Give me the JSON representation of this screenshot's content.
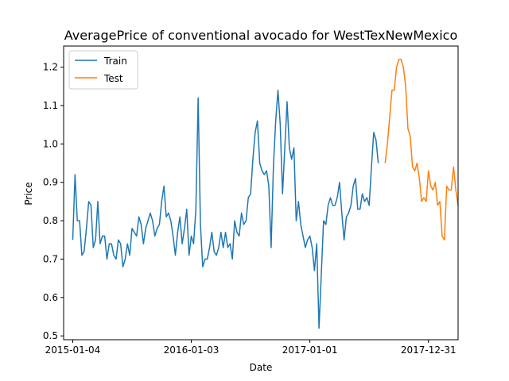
{
  "chart_data": {
    "type": "line",
    "title": "AveragePrice of conventional avocado for WestTexNewMexico",
    "xlabel": "Date",
    "ylabel": "Price",
    "x_range": [
      "2014-12-07",
      "2018-04-01"
    ],
    "ylim": [
      0.49,
      1.255
    ],
    "x_ticks": [
      "2015-01-04",
      "2016-01-03",
      "2017-01-01",
      "2017-12-31"
    ],
    "y_ticks": [
      "0.5",
      "0.6",
      "0.7",
      "0.8",
      "0.9",
      "1.0",
      "1.1",
      "1.2"
    ],
    "grid": false,
    "legend": "upper-left",
    "series": [
      {
        "name": "Train",
        "color": "#1f77b4",
        "start": "2015-01-04",
        "step_days": 7,
        "values": [
          0.75,
          0.92,
          0.8,
          0.8,
          0.71,
          0.72,
          0.78,
          0.85,
          0.84,
          0.73,
          0.75,
          0.85,
          0.74,
          0.76,
          0.76,
          0.7,
          0.74,
          0.74,
          0.71,
          0.7,
          0.75,
          0.74,
          0.68,
          0.7,
          0.74,
          0.71,
          0.78,
          0.77,
          0.76,
          0.81,
          0.79,
          0.74,
          0.78,
          0.8,
          0.82,
          0.8,
          0.76,
          0.78,
          0.79,
          0.85,
          0.89,
          0.81,
          0.82,
          0.8,
          0.76,
          0.71,
          0.77,
          0.81,
          0.74,
          0.78,
          0.83,
          0.71,
          0.76,
          0.74,
          0.83,
          1.12,
          0.79,
          0.68,
          0.7,
          0.7,
          0.73,
          0.77,
          0.72,
          0.71,
          0.73,
          0.77,
          0.73,
          0.77,
          0.73,
          0.74,
          0.7,
          0.8,
          0.77,
          0.76,
          0.82,
          0.79,
          0.8,
          0.86,
          0.87,
          0.96,
          1.03,
          1.06,
          0.95,
          0.93,
          0.92,
          0.93,
          0.89,
          0.73,
          0.94,
          1.06,
          1.14,
          1.05,
          0.87,
          0.99,
          1.11,
          0.99,
          0.96,
          0.99,
          0.8,
          0.85,
          0.79,
          0.76,
          0.73,
          0.75,
          0.76,
          0.73,
          0.67,
          0.74,
          0.52,
          0.66,
          0.8,
          0.79,
          0.84,
          0.86,
          0.84,
          0.84,
          0.86,
          0.9,
          0.82,
          0.75,
          0.81,
          0.82,
          0.84,
          0.89,
          0.91,
          0.83,
          0.83,
          0.87,
          0.85,
          0.86,
          0.84,
          0.94,
          1.03,
          1.01,
          0.95
        ]
      },
      {
        "name": "Test",
        "color": "#ff7f0e",
        "start": "2017-08-20",
        "step_days": 7,
        "values": [
          0.95,
          1.0,
          1.07,
          1.14,
          1.14,
          1.2,
          1.22,
          1.22,
          1.2,
          1.15,
          1.04,
          1.02,
          0.94,
          0.93,
          0.95,
          0.91,
          0.85,
          0.86,
          0.85,
          0.93,
          0.89,
          0.88,
          0.9,
          0.84,
          0.85,
          0.76,
          0.75,
          0.89,
          0.88,
          0.88,
          0.94,
          0.88,
          0.84
        ]
      }
    ]
  }
}
